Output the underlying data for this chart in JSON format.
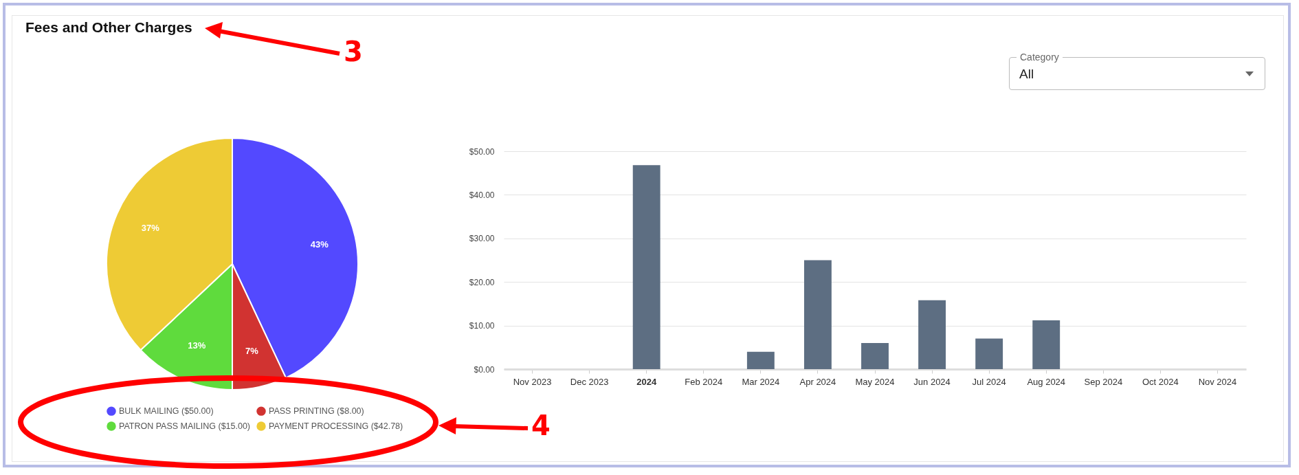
{
  "chart_data": [
    {
      "type": "pie",
      "title": "Fees and Other Charges",
      "categories": [
        "BULK MAILING ($50.00)",
        "PASS PRINTING ($8.00)",
        "PATRON PASS MAILING ($15.00)",
        "PAYMENT PROCESSING ($42.78)"
      ],
      "values": [
        43,
        7,
        13,
        37
      ],
      "colors": [
        "#5349ff",
        "#d13331",
        "#5fdb3d",
        "#eecb35"
      ],
      "value_labels": [
        "43%",
        "7%",
        "13%",
        "37%"
      ],
      "legend": "bottom",
      "annotations": [
        "3",
        "4"
      ]
    },
    {
      "type": "bar",
      "categories": [
        "Nov 2023",
        "Dec 2023",
        "2024",
        "Feb 2024",
        "Mar 2024",
        "Apr 2024",
        "May 2024",
        "Jun 2024",
        "Jul 2024",
        "Aug 2024",
        "Sep 2024",
        "Oct 2024",
        "Nov 2024"
      ],
      "values": [
        0,
        0,
        46.8,
        0,
        4,
        25,
        6,
        15.8,
        7,
        11.2,
        0,
        0,
        0
      ],
      "color": "#5a6b80",
      "ylim": [
        0,
        50
      ],
      "yticks": [
        {
          "value": 0,
          "label": "$0.00"
        },
        {
          "value": 10,
          "label": "$10.00"
        },
        {
          "value": 20,
          "label": "$20.00"
        },
        {
          "value": 30,
          "label": "$30.00"
        },
        {
          "value": 40,
          "label": "$40.00"
        },
        {
          "value": 50,
          "label": "$50.00"
        }
      ],
      "grid": "y",
      "legend": false,
      "annotations": [
        "Category",
        "All"
      ]
    }
  ]
}
